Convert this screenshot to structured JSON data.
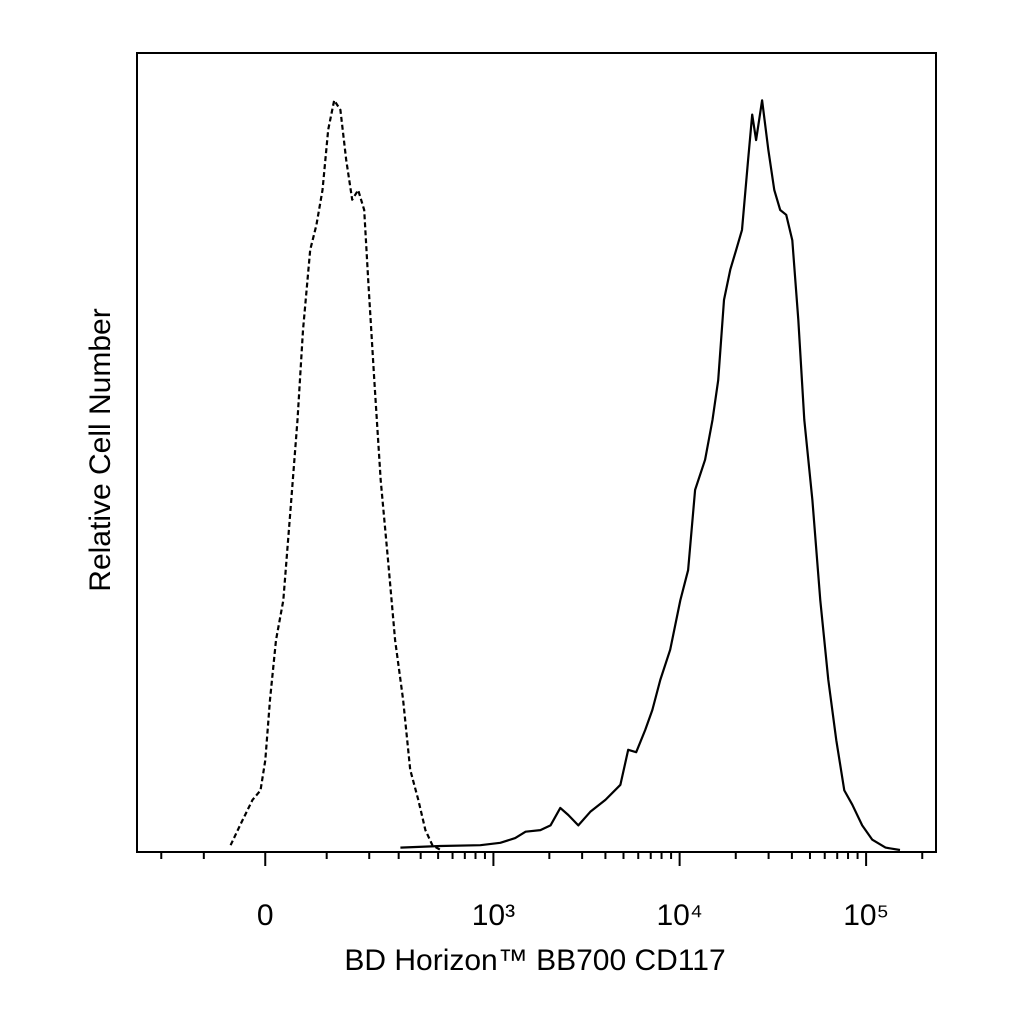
{
  "chart_data": {
    "type": "line",
    "x_label": "BD Horizon™ BB700 CD117",
    "y_label": "Relative Cell Number",
    "xscale": "biexponential",
    "xlim": [
      -280,
      237000
    ],
    "ylim": [
      0,
      100
    ],
    "xticks": [
      0,
      {
        "value": 1000,
        "label": "10³"
      },
      {
        "value": 10000,
        "label": "10⁴"
      },
      {
        "value": 100000,
        "label": "10⁵"
      }
    ],
    "xminorticks": [
      -200,
      -100,
      100,
      200,
      300,
      400,
      500,
      600,
      700,
      800,
      900,
      2000,
      3000,
      4000,
      5000,
      6000,
      7000,
      8000,
      9000,
      20000,
      30000,
      40000,
      50000,
      60000,
      70000,
      80000,
      90000,
      200000
    ],
    "series": [
      {
        "color": "#000000",
        "line_style": "dashed",
        "x": [
          -53,
          -38,
          -19,
          -7,
          0,
          7,
          16,
          27,
          38,
          49,
          58,
          70,
          81,
          92,
          103,
          115,
          128,
          141,
          155,
          170,
          186,
          197,
          215,
          235,
          260,
          286,
          318,
          349,
          388,
          425,
          465,
          515
        ],
        "values": [
          0.6,
          3.1,
          6.3,
          7.5,
          11.3,
          18.9,
          26.4,
          31.4,
          42.8,
          54.1,
          65.4,
          75.5,
          78.6,
          83,
          90.6,
          94.3,
          93.1,
          86.8,
          81.8,
          83,
          80.5,
          71.7,
          59.1,
          46.5,
          36.5,
          26.4,
          18.9,
          10.1,
          6.3,
          2.5,
          0.6,
          0
        ]
      },
      {
        "color": "#000000",
        "line_style": "solid",
        "x": [
          307,
          515,
          850,
          1090,
          1310,
          1490,
          1790,
          2030,
          2290,
          2530,
          2860,
          3320,
          4000,
          4810,
          5300,
          5850,
          6540,
          7140,
          7880,
          8900,
          10080,
          11100,
          12100,
          13700,
          15000,
          16100,
          17300,
          18700,
          20100,
          21600,
          23300,
          24500,
          25700,
          27700,
          29900,
          32200,
          34600,
          37300,
          40200,
          43300,
          46600,
          51500,
          56800,
          62700,
          69200,
          76400,
          84300,
          95300,
          108000,
          127000,
          152000
        ],
        "values": [
          0.3,
          0.5,
          0.6,
          0.9,
          1.5,
          2.3,
          2.5,
          3.1,
          5.3,
          4.4,
          3.1,
          4.8,
          6.3,
          8.2,
          12.6,
          12.3,
          15.1,
          17.6,
          21.4,
          25.2,
          31.4,
          35.2,
          45.3,
          49.1,
          54.1,
          59.1,
          69.2,
          73,
          75.5,
          78,
          86.8,
          92.5,
          89.3,
          94.3,
          88.1,
          83,
          80.5,
          79.9,
          76.7,
          66.7,
          54.1,
          44,
          31.4,
          21.4,
          13.8,
          7.5,
          5.7,
          3.1,
          1.3,
          0.3,
          0
        ]
      }
    ]
  }
}
